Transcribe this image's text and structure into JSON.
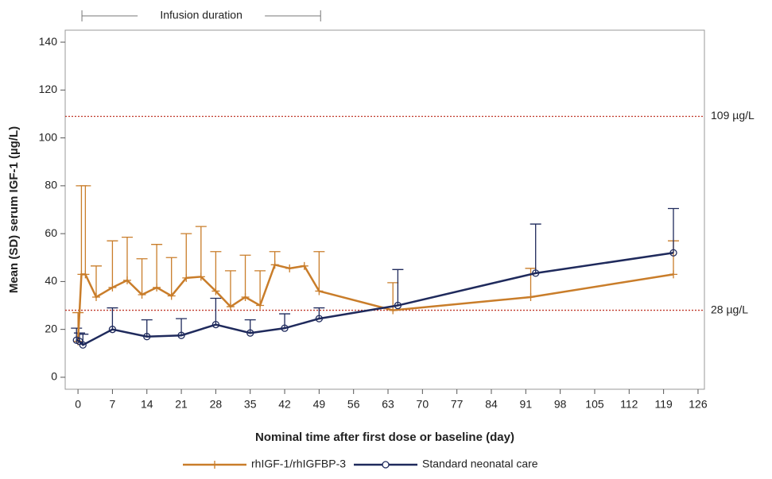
{
  "chart_data": {
    "type": "line",
    "x_label": "Nominal time after first dose or baseline (day)",
    "y_label": "Mean (SD) serum IGF-1 (µg/L)",
    "xlim": [
      -2.6,
      127.3
    ],
    "ylim": [
      -5,
      145
    ],
    "xticks": [
      0,
      7,
      14,
      21,
      28,
      35,
      42,
      49,
      56,
      63,
      70,
      77,
      84,
      91,
      98,
      105,
      112,
      119,
      126
    ],
    "yticks": [
      0,
      20,
      40,
      60,
      80,
      100,
      120,
      140
    ],
    "series": [
      {
        "name": "rhIGF-1/rhIGFBP-3",
        "color": "#c97d2a",
        "marker": "plus",
        "x": [
          0,
          0.7,
          1.5,
          3.7,
          7,
          10,
          13,
          16,
          19,
          22,
          25,
          28,
          31,
          34,
          37,
          40,
          43,
          46,
          49,
          64,
          92,
          121
        ],
        "values": [
          15,
          43,
          43,
          33.5,
          37.5,
          40.5,
          34.5,
          37.5,
          34,
          41.5,
          42,
          36,
          29.5,
          33.5,
          30,
          47,
          45.5,
          46.5,
          36,
          28,
          33.5,
          43
        ],
        "errors": [
          12,
          37,
          37,
          13,
          19.5,
          18,
          15,
          18,
          16,
          18.5,
          21,
          16.5,
          15,
          17.5,
          14.5,
          5.5,
          null,
          null,
          16.5,
          11.5,
          12,
          14
        ]
      },
      {
        "name": "Standard neonatal care",
        "color": "#1f2a5c",
        "marker": "circle",
        "x": [
          -0.3,
          0.3,
          1,
          7,
          14,
          21,
          28,
          35,
          42,
          49,
          65,
          93,
          121
        ],
        "values": [
          15.5,
          15,
          13.5,
          20,
          17,
          17.5,
          22,
          18.5,
          20.5,
          24.5,
          30,
          43.5,
          52
        ],
        "errors": [
          5,
          3.5,
          4.5,
          9,
          7,
          7,
          11,
          5.5,
          6,
          4.5,
          15,
          20.5,
          18.5
        ]
      }
    ],
    "reference_lines": [
      {
        "value": 109,
        "label": "109 µg/L",
        "color": "#c0392b"
      },
      {
        "value": 28,
        "label": "28 µg/L",
        "color": "#c0392b"
      }
    ],
    "annotations": [
      {
        "text": "Infusion duration",
        "x_start": 0.8,
        "x_end": 49.3
      }
    ],
    "legend": "bottom"
  }
}
